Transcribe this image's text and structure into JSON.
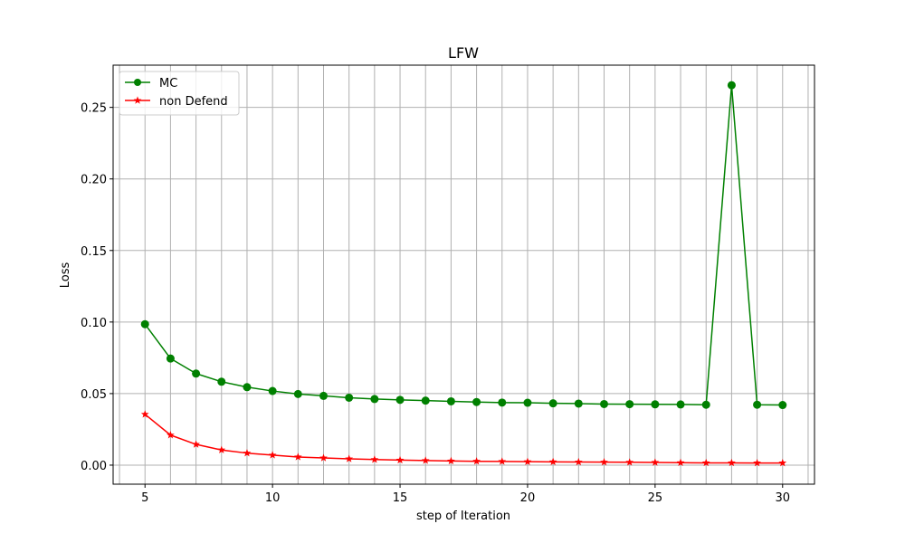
{
  "chart_data": {
    "type": "line",
    "title": "LFW",
    "xlabel": "step of Iteration",
    "ylabel": "Loss",
    "xlim": [
      3.75,
      31.25
    ],
    "ylim": [
      -0.0133,
      0.2795
    ],
    "x": [
      5,
      6,
      7,
      8,
      9,
      10,
      11,
      12,
      13,
      14,
      15,
      16,
      17,
      18,
      19,
      20,
      21,
      22,
      23,
      24,
      25,
      26,
      27,
      28,
      29,
      30
    ],
    "xticks": [
      5,
      10,
      15,
      20,
      25,
      30
    ],
    "yticks": [
      0.0,
      0.05,
      0.1,
      0.15,
      0.2,
      0.25
    ],
    "ytick_labels": [
      "0.00",
      "0.05",
      "0.10",
      "0.15",
      "0.20",
      "0.25"
    ],
    "grid": true,
    "legend_position": "top-left",
    "series": [
      {
        "name": "MC",
        "color": "#008000",
        "marker": "circle",
        "values": [
          0.0985,
          0.0745,
          0.064,
          0.0583,
          0.0545,
          0.0518,
          0.0497,
          0.0484,
          0.0471,
          0.0462,
          0.0456,
          0.0451,
          0.0446,
          0.0441,
          0.0437,
          0.0436,
          0.0432,
          0.043,
          0.0427,
          0.0426,
          0.0425,
          0.0424,
          0.0422,
          0.2655,
          0.0422,
          0.042
        ]
      },
      {
        "name": "non Defend",
        "color": "#ff0000",
        "marker": "star",
        "values": [
          0.0355,
          0.021,
          0.0145,
          0.0106,
          0.0084,
          0.007,
          0.0057,
          0.005,
          0.0044,
          0.0039,
          0.0035,
          0.0032,
          0.0029,
          0.0027,
          0.0026,
          0.0024,
          0.0023,
          0.0022,
          0.0021,
          0.002,
          0.0019,
          0.0017,
          0.0016,
          0.0016,
          0.0015,
          0.0015
        ]
      }
    ]
  }
}
